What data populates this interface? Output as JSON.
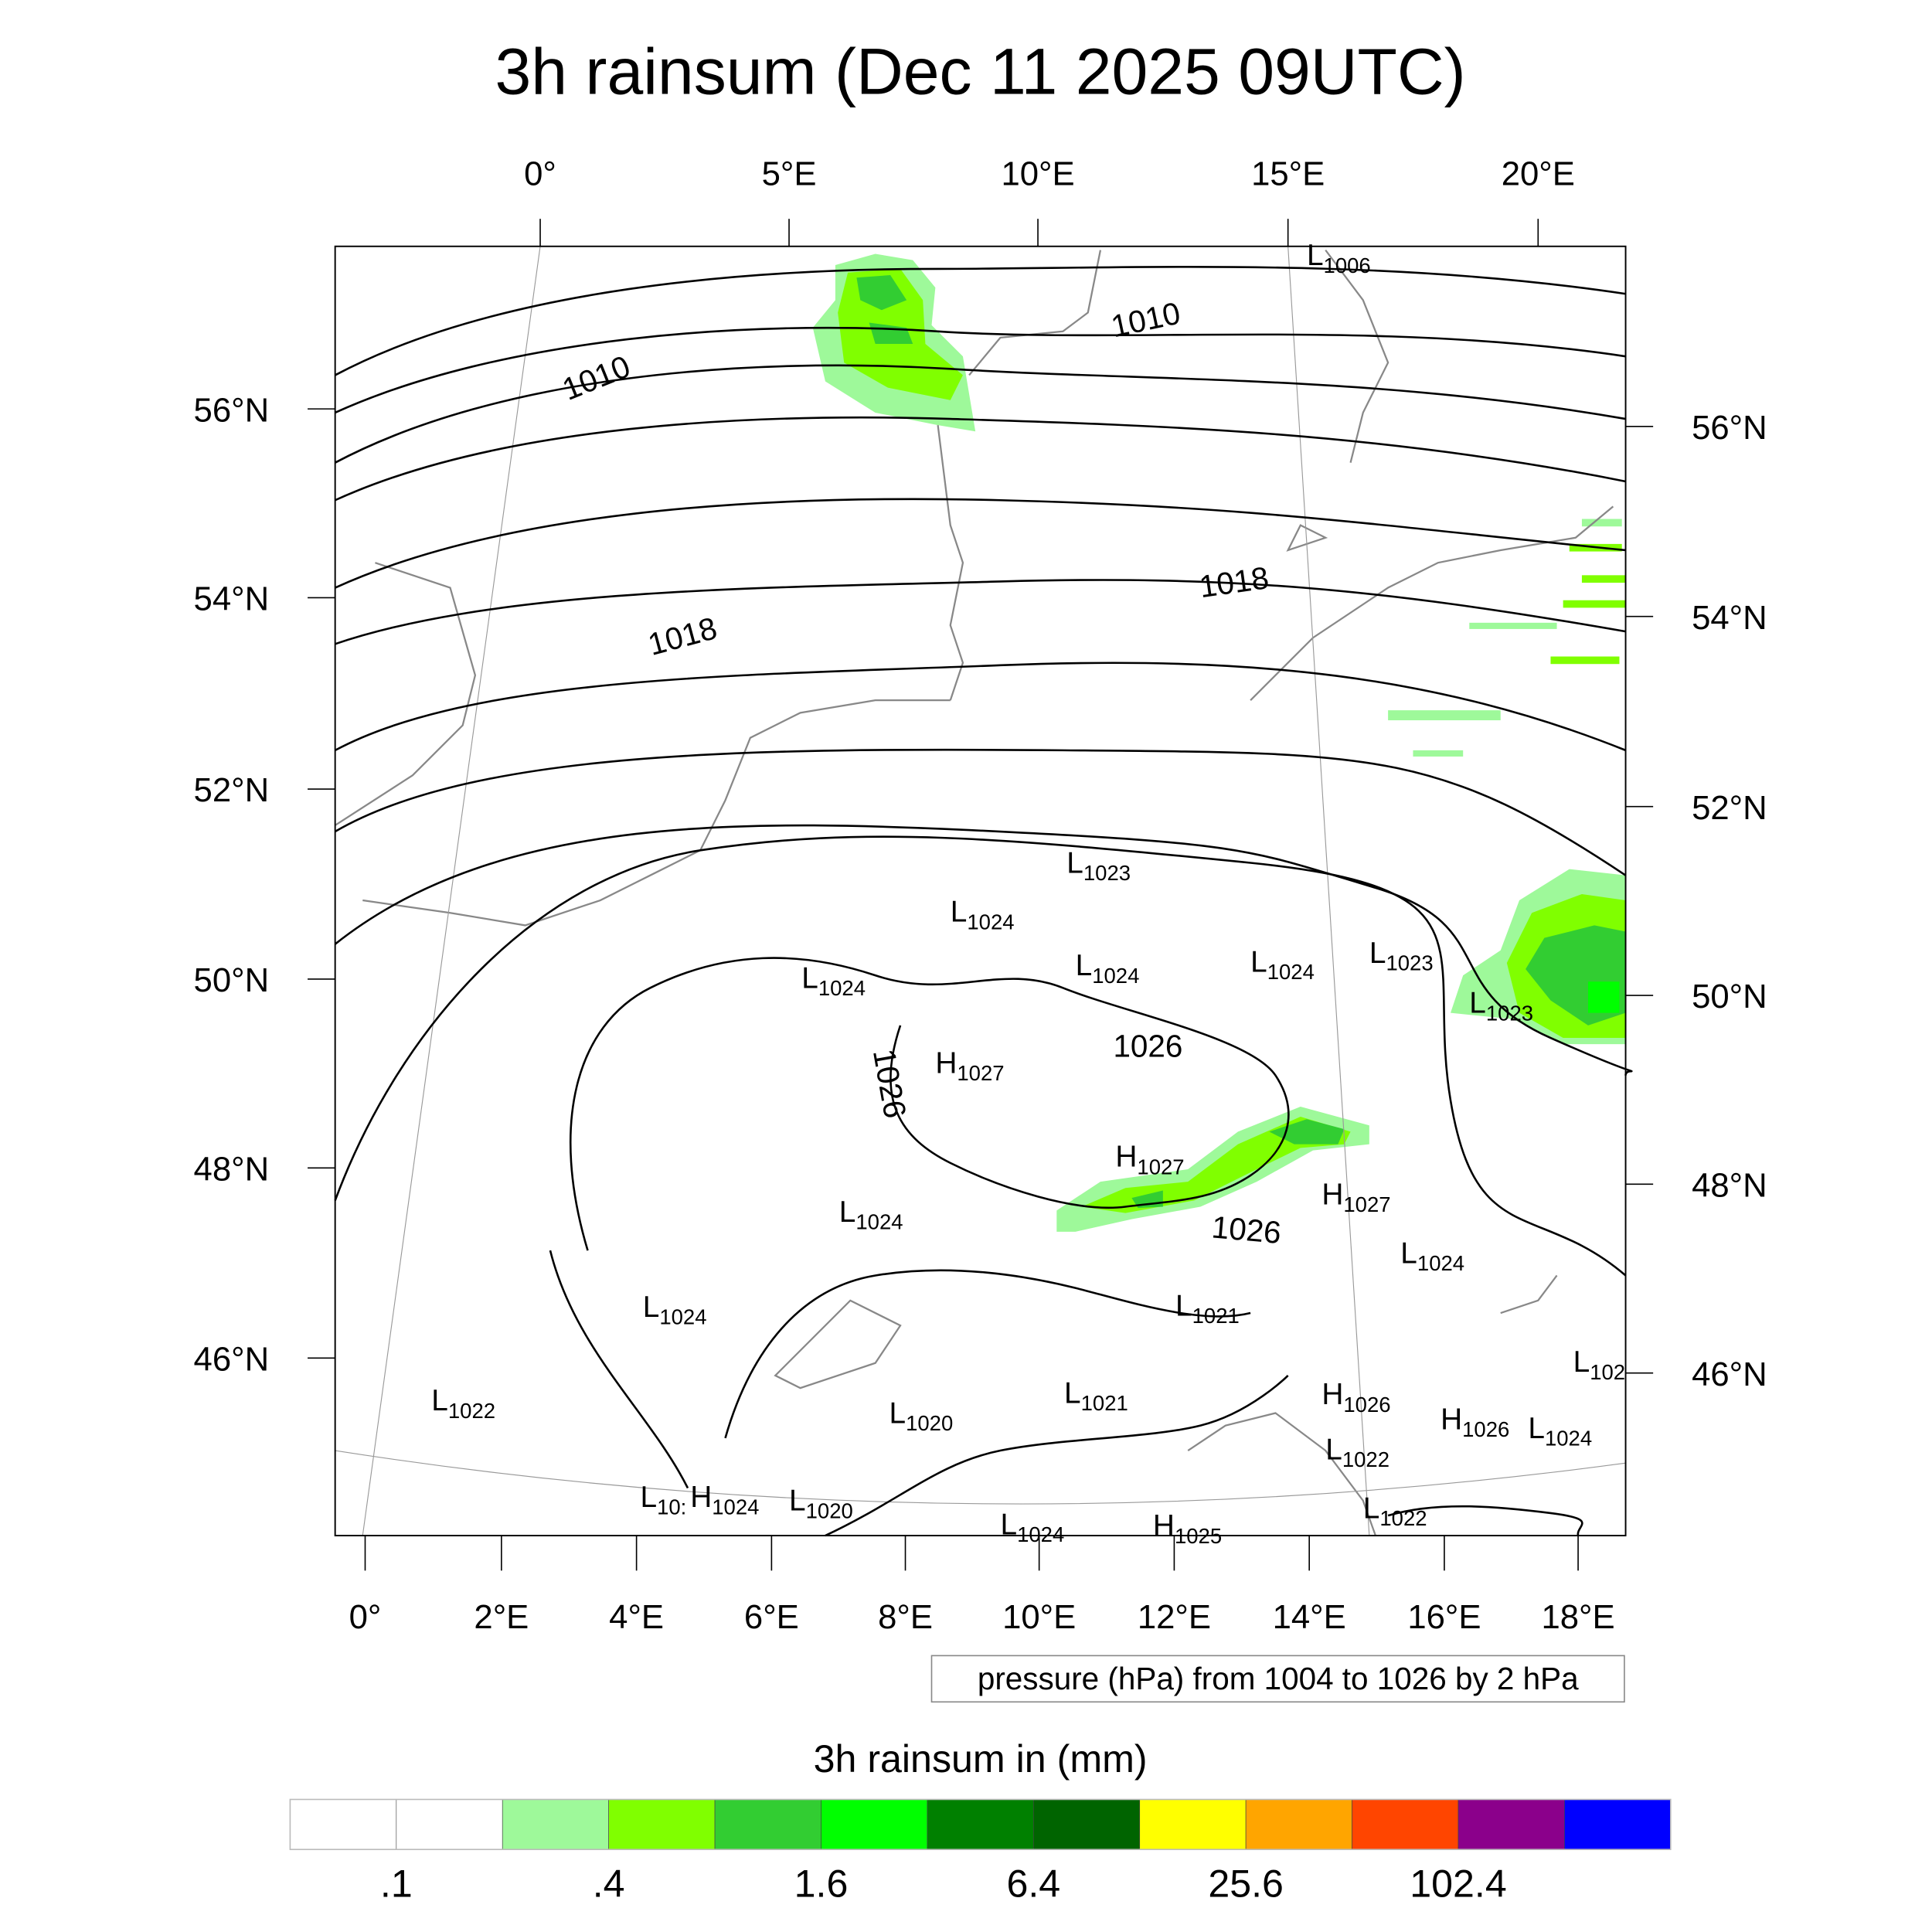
{
  "title": "3h rainsum (Dec 11 2025 09UTC)",
  "top_lon_labels": [
    "0°",
    "5°E",
    "10°E",
    "15°E",
    "20°E"
  ],
  "left_lat_labels": [
    "56°N",
    "54°N",
    "52°N",
    "50°N",
    "48°N",
    "46°N"
  ],
  "right_lat_labels": [
    "56°N",
    "54°N",
    "52°N",
    "50°N",
    "48°N",
    "46°N"
  ],
  "bottom_lon_labels": [
    "0°",
    "2°E",
    "4°E",
    "6°E",
    "8°E",
    "10°E",
    "12°E",
    "14°E",
    "16°E",
    "18°E"
  ],
  "contour_labels": [
    "1010",
    "1010",
    "1018",
    "1018",
    "1026",
    "1026",
    "1026"
  ],
  "pressure_centers": [
    {
      "type": "L",
      "value": "1006"
    },
    {
      "type": "L",
      "value": "1023"
    },
    {
      "type": "L",
      "value": "1024"
    },
    {
      "type": "L",
      "value": "1024"
    },
    {
      "type": "L",
      "value": "1024"
    },
    {
      "type": "L",
      "value": "1024"
    },
    {
      "type": "L",
      "value": "1023"
    },
    {
      "type": "L",
      "value": "1023"
    },
    {
      "type": "H",
      "value": "1027"
    },
    {
      "type": "H",
      "value": "1027"
    },
    {
      "type": "H",
      "value": "1027"
    },
    {
      "type": "L",
      "value": "1024"
    },
    {
      "type": "L",
      "value": "1024"
    },
    {
      "type": "L",
      "value": "1024"
    },
    {
      "type": "L",
      "value": "1021"
    },
    {
      "type": "L",
      "value": "102"
    },
    {
      "type": "L",
      "value": "1022"
    },
    {
      "type": "L",
      "value": "1020"
    },
    {
      "type": "L",
      "value": "1021"
    },
    {
      "type": "H",
      "value": "1026"
    },
    {
      "type": "H",
      "value": "1026"
    },
    {
      "type": "L",
      "value": "1024"
    },
    {
      "type": "L",
      "value": "1022"
    },
    {
      "type": "L",
      "value": "10:"
    },
    {
      "type": "H",
      "value": "1024"
    },
    {
      "type": "L",
      "value": "1020"
    },
    {
      "type": "L",
      "value": "1024"
    },
    {
      "type": "H",
      "value": "1025"
    },
    {
      "type": "L",
      "value": "1022"
    }
  ],
  "info_box": "pressure (hPa) from 1004 to 1026 by 2 hPa",
  "colorbar": {
    "title": "3h rainsum in (mm)",
    "colors": [
      "#ffffff",
      "#ffffff",
      "#9ef99a",
      "#80ff00",
      "#32cd32",
      "#00ff00",
      "#008000",
      "#006400",
      "#ffff00",
      "#ffa500",
      "#ff4500",
      "#8b008b",
      "#0000ff"
    ],
    "labels": [
      ".1",
      ".4",
      "1.6",
      "6.4",
      "25.6",
      "102.4"
    ]
  }
}
